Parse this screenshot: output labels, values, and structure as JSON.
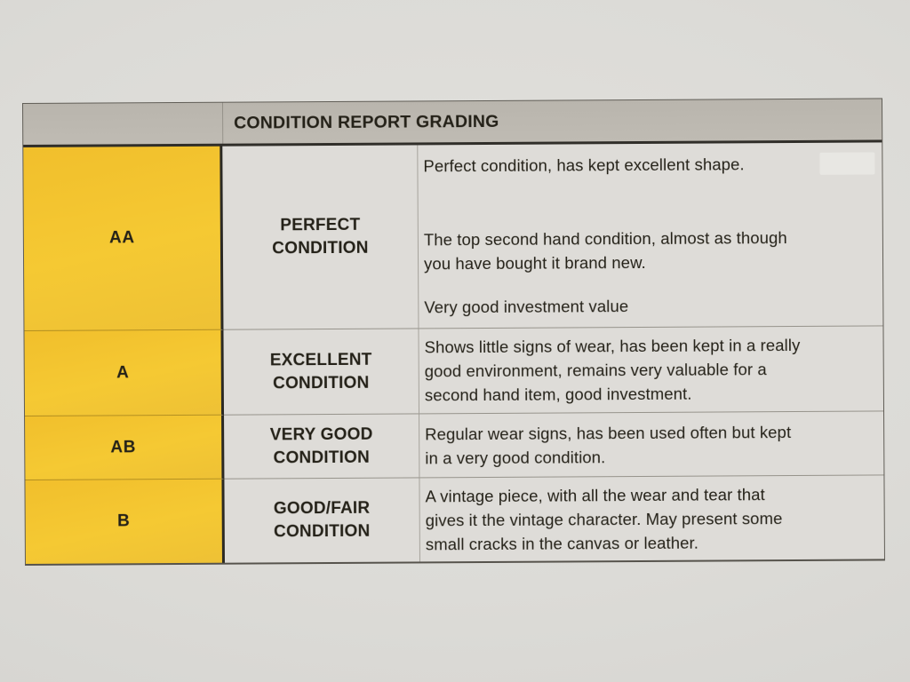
{
  "table": {
    "title": "CONDITION REPORT GRADING",
    "colors": {
      "header_bg": "#bcb8b0",
      "grade_bg": "#f3c52f",
      "cell_bg": "#dedcd8",
      "border_dark": "#302e29",
      "border_light": "#96938b",
      "text": "#242118"
    },
    "rows": [
      {
        "grade": "AA",
        "condition": "PERFECT\nCONDITION",
        "paragraphs": [
          "Perfect condition, has kept excellent shape.",
          "The top second hand condition, almost as though\nyou have bought it brand new.",
          "Very good investment value"
        ]
      },
      {
        "grade": "A",
        "condition": "EXCELLENT\nCONDITION",
        "paragraphs": [
          "Shows little signs of wear, has been kept in a really\ngood environment, remains very valuable for a\nsecond hand item, good investment."
        ]
      },
      {
        "grade": "AB",
        "condition": "VERY GOOD\nCONDITION",
        "paragraphs": [
          "Regular wear signs, has been used often but kept\nin a very good condition."
        ]
      },
      {
        "grade": "B",
        "condition": "GOOD/FAIR\nCONDITION",
        "paragraphs": [
          "A vintage piece, with all the wear and tear that\ngives it the vintage character. May present some\nsmall cracks in the canvas or leather."
        ]
      }
    ]
  }
}
